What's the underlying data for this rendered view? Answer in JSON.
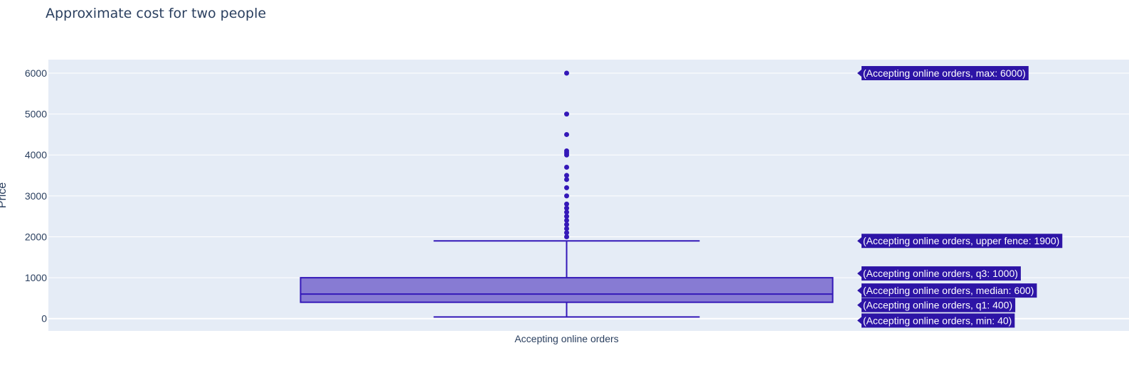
{
  "chart_data": {
    "type": "box",
    "title": "Approximate cost for two people",
    "xlabel": "",
    "ylabel": "Price",
    "categories": [
      "Accepting online orders"
    ],
    "y_ticks": [
      0,
      1000,
      2000,
      3000,
      4000,
      5000,
      6000
    ],
    "ylim": [
      -300,
      6330
    ],
    "grid": true,
    "series": [
      {
        "category": "Accepting online orders",
        "min": 40,
        "q1": 400,
        "median": 600,
        "q3": 1000,
        "upper_fence": 1900,
        "max": 6000,
        "outliers": [
          6000,
          5000,
          4500,
          4100,
          4050,
          4000,
          3700,
          3500,
          3400,
          3200,
          3000,
          2800,
          2700,
          2600,
          2500,
          2400,
          2300,
          2200,
          2100,
          2000
        ]
      }
    ],
    "hover_labels": [
      "(Accepting online orders, max: 6000)",
      "(Accepting online orders, upper fence: 1900)",
      "(Accepting online orders, q3: 1000)",
      "(Accepting online orders, median: 600)",
      "(Accepting online orders, q1: 400)",
      "(Accepting online orders, min: 40)"
    ],
    "colors": {
      "box_line": "#3418b8",
      "box_fill": "#877bd3",
      "plot_bg": "#e5ecf6",
      "grid": "#ffffff",
      "hover_bg": "#2d14a6",
      "text": "#2a3f5f"
    }
  }
}
